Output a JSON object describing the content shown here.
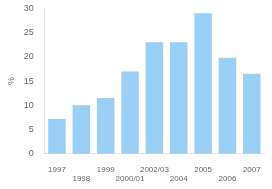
{
  "chart_data": {
    "type": "bar",
    "categories": [
      "1997",
      "1998",
      "1999",
      "2000/01",
      "2002/03",
      "2004",
      "2005",
      "2006",
      "2007"
    ],
    "values": [
      7.2,
      10.0,
      11.5,
      17.0,
      23.0,
      23.0,
      29.0,
      19.8,
      16.5
    ],
    "ylabel": "%",
    "ylim": [
      0,
      30
    ],
    "yticks": [
      0,
      5,
      10,
      15,
      20,
      25,
      30
    ],
    "grid": false
  }
}
